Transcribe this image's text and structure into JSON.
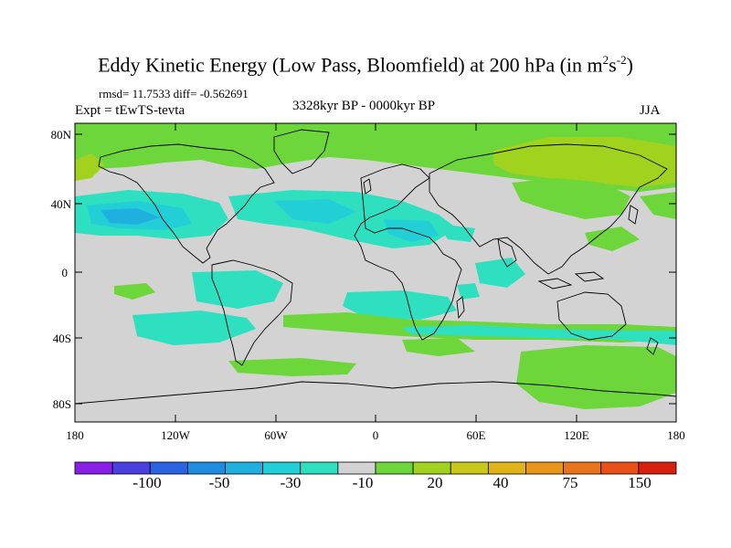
{
  "title": {
    "main": "Eddy Kinetic Energy (Low Pass, Bloomfield) at 200 hPa (in m",
    "sup1": "2",
    "mid": "s",
    "sup2": "-2",
    "end": ")"
  },
  "stats": {
    "rmsd": "rmsd= 11.7533 diff= -0.562691",
    "experiment": "Expt = tEwTS-tevta",
    "period": "3328kyr BP - 0000kyr BP",
    "season": "JJA"
  },
  "map": {
    "lat_labels": [
      "80N",
      "40N",
      "0",
      "40S",
      "80S"
    ],
    "lon_labels": [
      "180",
      "120W",
      "60W",
      "0",
      "60E",
      "120E",
      "180"
    ],
    "background_color": "#d3d3d3"
  },
  "colorbar": {
    "labels": [
      "-100",
      "-50",
      "-30",
      "-10",
      "20",
      "40",
      "75",
      "150"
    ],
    "colors": [
      "#8a1fe8",
      "#4a3fe0",
      "#2a64e0",
      "#1f8ce0",
      "#1fb0e0",
      "#22cfd6",
      "#2ee0c0",
      "#d3d3d3",
      "#6cd63b",
      "#a0d21e",
      "#c8c81a",
      "#e0b418",
      "#e8961a",
      "#e8741c",
      "#e85018",
      "#d82010"
    ]
  }
}
